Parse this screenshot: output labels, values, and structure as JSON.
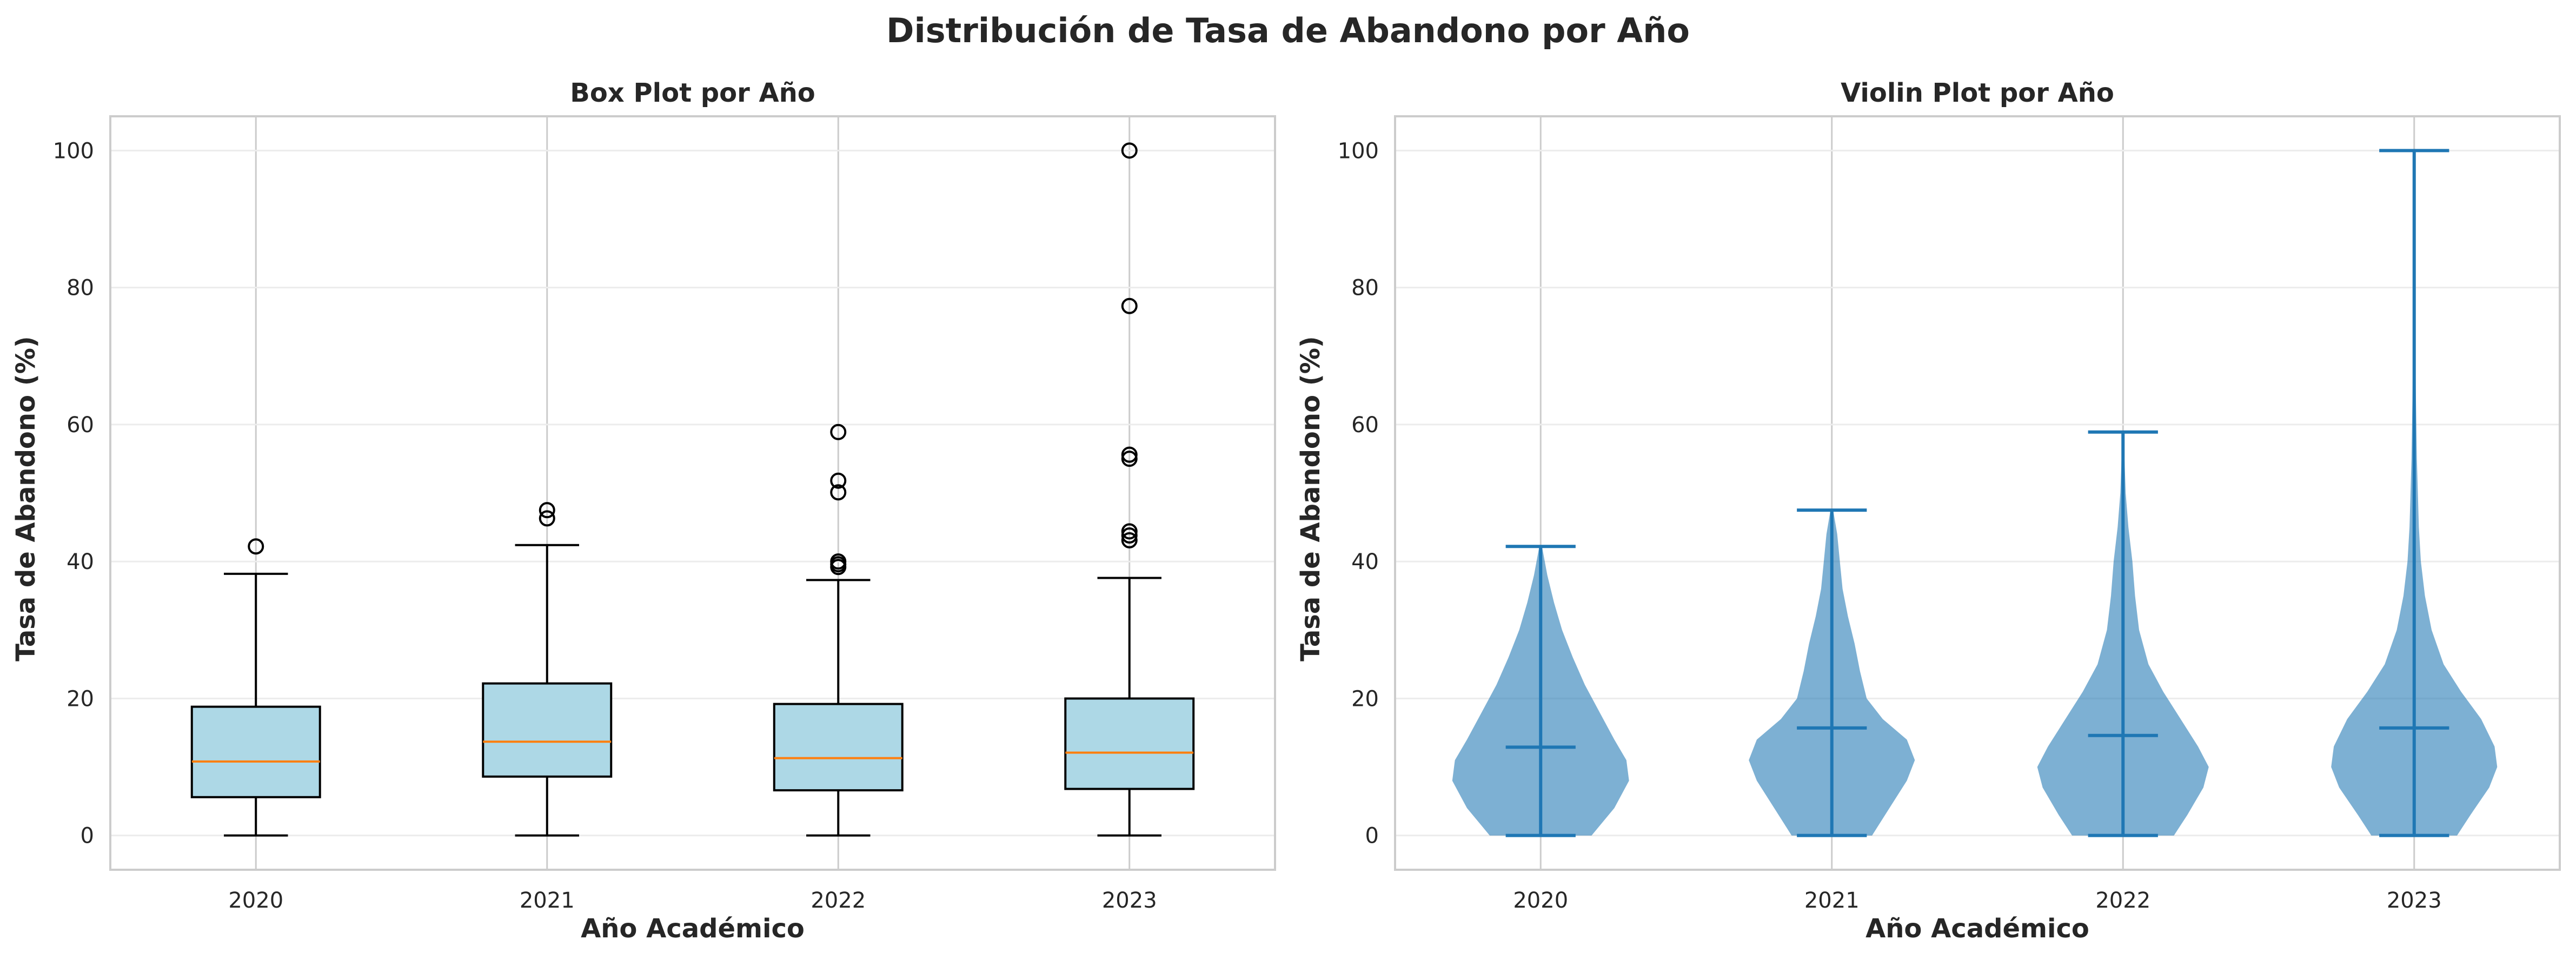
{
  "figure_title": "Distribución de Tasa de Abandono por Año",
  "chart_data": [
    {
      "type": "box",
      "title": "Box Plot por Año",
      "xlabel": "Año Académico",
      "ylabel": "Tasa de Abandono (%)",
      "categories": [
        "2020",
        "2021",
        "2022",
        "2023"
      ],
      "ylim": [
        -5,
        105
      ],
      "yticks": [
        0,
        20,
        40,
        60,
        80,
        100
      ],
      "grid": true,
      "box_color": "#add8e6",
      "median_color": "#ff7f0e",
      "boxes": [
        {
          "q1": 5.6,
          "median": 10.8,
          "q3": 18.8,
          "whisker_low": 0,
          "whisker_high": 38.2,
          "outliers": [
            42.2
          ]
        },
        {
          "q1": 8.6,
          "median": 13.7,
          "q3": 22.2,
          "whisker_low": 0,
          "whisker_high": 42.4,
          "outliers": [
            46.3,
            47.5
          ]
        },
        {
          "q1": 6.6,
          "median": 11.3,
          "q3": 19.2,
          "whisker_low": 0,
          "whisker_high": 37.3,
          "outliers": [
            39.2,
            39.6,
            40.0,
            50.1,
            51.8,
            58.9
          ]
        },
        {
          "q1": 6.8,
          "median": 12.1,
          "q3": 20.0,
          "whisker_low": 0,
          "whisker_high": 37.6,
          "outliers": [
            43.1,
            43.8,
            44.4,
            55.0,
            55.6,
            77.3,
            100.0
          ]
        }
      ]
    },
    {
      "type": "violin",
      "title": "Violin Plot por Año",
      "xlabel": "Año Académico",
      "ylabel": "Tasa de Abandono (%)",
      "categories": [
        "2020",
        "2021",
        "2022",
        "2023"
      ],
      "ylim": [
        -5,
        105
      ],
      "yticks": [
        0,
        20,
        40,
        60,
        80,
        100
      ],
      "grid": true,
      "body_color": "#1f77b4",
      "line_color": "#1f77b4",
      "violins": [
        {
          "min": 0,
          "max": 42.2,
          "mean": 12.9,
          "profile": [
            [
              0,
              0.38
            ],
            [
              4,
              0.55
            ],
            [
              8,
              0.66
            ],
            [
              11,
              0.64
            ],
            [
              14,
              0.55
            ],
            [
              18,
              0.44
            ],
            [
              22,
              0.33
            ],
            [
              26,
              0.24
            ],
            [
              30,
              0.16
            ],
            [
              34,
              0.1
            ],
            [
              38,
              0.05
            ],
            [
              42.2,
              0.01
            ]
          ]
        },
        {
          "min": 0,
          "max": 47.5,
          "mean": 15.7,
          "profile": [
            [
              0,
              0.3
            ],
            [
              4,
              0.43
            ],
            [
              8,
              0.56
            ],
            [
              11,
              0.62
            ],
            [
              14,
              0.56
            ],
            [
              17,
              0.38
            ],
            [
              20,
              0.26
            ],
            [
              24,
              0.21
            ],
            [
              28,
              0.17
            ],
            [
              32,
              0.12
            ],
            [
              36,
              0.08
            ],
            [
              40,
              0.06
            ],
            [
              44,
              0.04
            ],
            [
              47.5,
              0.01
            ]
          ]
        },
        {
          "min": 0,
          "max": 58.9,
          "mean": 14.6,
          "profile": [
            [
              0,
              0.38
            ],
            [
              3,
              0.48
            ],
            [
              7,
              0.6
            ],
            [
              10,
              0.64
            ],
            [
              13,
              0.56
            ],
            [
              17,
              0.43
            ],
            [
              21,
              0.3
            ],
            [
              25,
              0.19
            ],
            [
              30,
              0.12
            ],
            [
              35,
              0.09
            ],
            [
              40,
              0.07
            ],
            [
              45,
              0.04
            ],
            [
              50,
              0.02
            ],
            [
              58.9,
              0.004
            ]
          ]
        },
        {
          "min": 0,
          "max": 100.0,
          "mean": 15.7,
          "profile": [
            [
              0,
              0.32
            ],
            [
              3,
              0.42
            ],
            [
              7,
              0.56
            ],
            [
              10,
              0.62
            ],
            [
              13,
              0.6
            ],
            [
              17,
              0.5
            ],
            [
              21,
              0.35
            ],
            [
              25,
              0.22
            ],
            [
              30,
              0.13
            ],
            [
              35,
              0.08
            ],
            [
              40,
              0.05
            ],
            [
              45,
              0.035
            ],
            [
              55,
              0.02
            ],
            [
              65,
              0.012
            ],
            [
              80,
              0.006
            ],
            [
              100,
              0.002
            ]
          ]
        }
      ]
    }
  ]
}
